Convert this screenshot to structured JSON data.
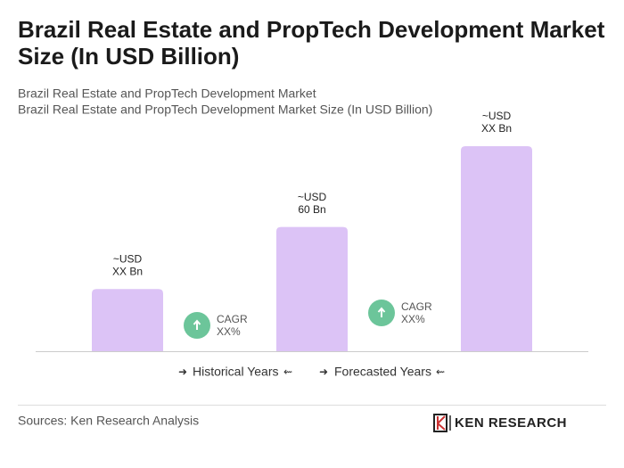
{
  "chart_data": {
    "type": "bar",
    "title": "Brazil Real Estate and PropTech Development Market Size (In USD Billion)",
    "subtitle": [
      "Brazil Real Estate and PropTech Development Market",
      "Brazil Real Estate and PropTech Development Market Size (In USD Billion)"
    ],
    "categories": [
      null,
      null,
      null
    ],
    "values": [
      30,
      60,
      99
    ],
    "value_labels": [
      [
        "~USD",
        "XX Bn"
      ],
      [
        "~USD",
        "60 Bn"
      ],
      [
        "~USD",
        "XX Bn"
      ]
    ],
    "color": "#dcc3f6",
    "cagr": [
      [
        "CAGR",
        "XX%"
      ],
      [
        "CAGR",
        "XX%"
      ]
    ],
    "periods": [
      "Historical Years",
      "Forecasted Years"
    ],
    "source": "Sources: Ken Research Analysis",
    "logo": "KEN RESEARCH"
  }
}
